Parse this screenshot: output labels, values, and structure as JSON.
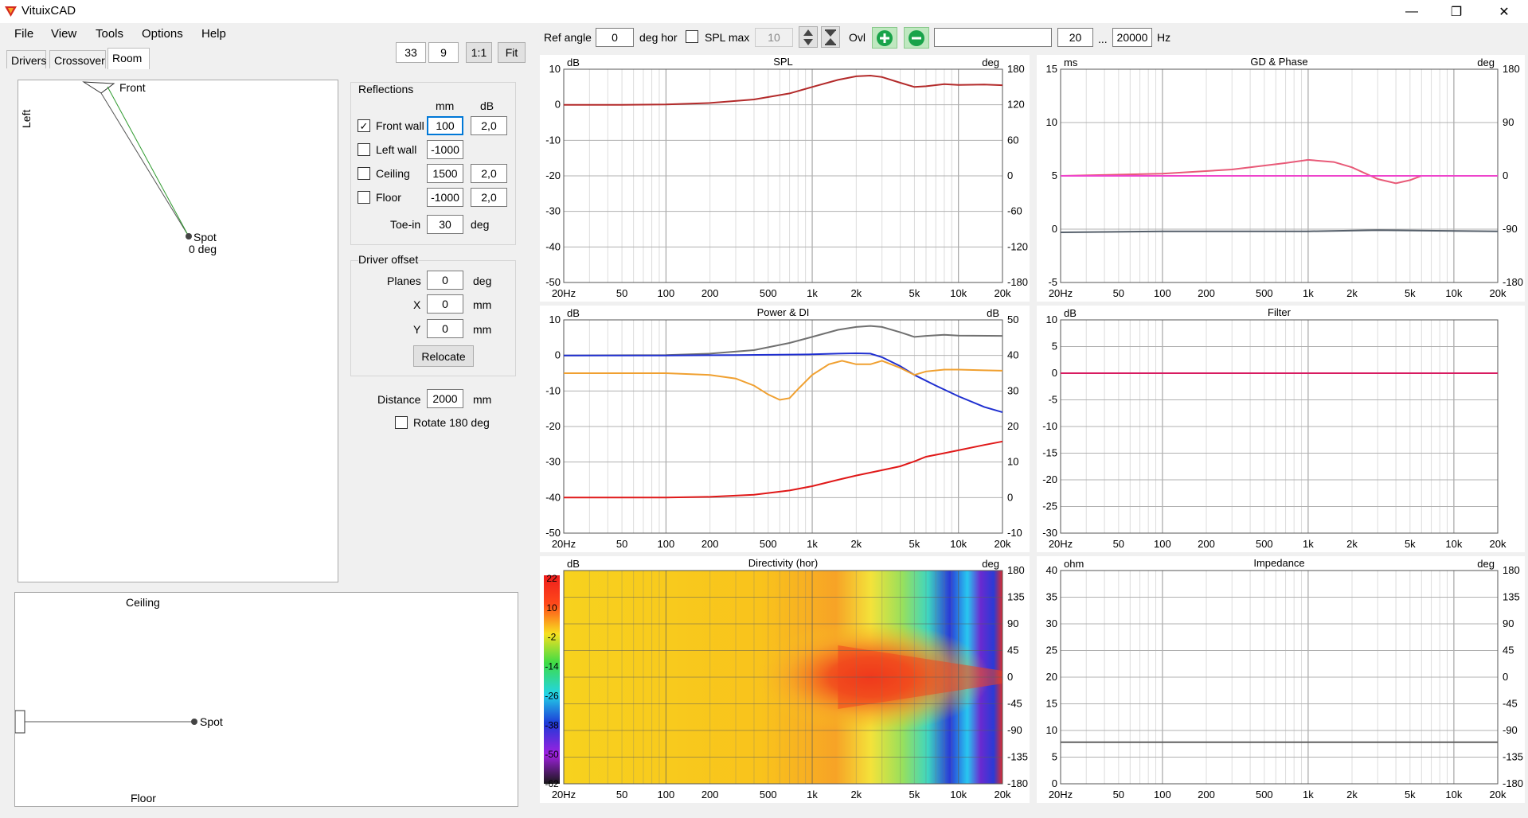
{
  "window": {
    "title": "VituixCAD",
    "minimize_glyph": "—",
    "maximize_glyph": "❐",
    "close_glyph": "✕",
    "app_icon": "speaker-logo-icon"
  },
  "menu": [
    "File",
    "View",
    "Tools",
    "Options",
    "Help"
  ],
  "tabs": [
    "Drivers",
    "Crossover",
    "Room"
  ],
  "view_controls": {
    "zoom_a": "33",
    "zoom_b": "9",
    "one_to_one": "1:1",
    "fit": "Fit"
  },
  "top_plan": {
    "front": "Front",
    "left": "Left",
    "spot": "Spot",
    "spot_angle": "0 deg"
  },
  "side_view": {
    "ceiling": "Ceiling",
    "floor": "Floor",
    "spot": "Spot"
  },
  "reflections": {
    "title": "Reflections",
    "col_mm": "mm",
    "col_db": "dB",
    "rows": [
      {
        "label": "Front wall",
        "checked": true,
        "mm": "100",
        "db": "2,0"
      },
      {
        "label": "Left wall",
        "checked": false,
        "mm": "-1000",
        "db": ""
      },
      {
        "label": "Ceiling",
        "checked": false,
        "mm": "1500",
        "db": "2,0"
      },
      {
        "label": "Floor",
        "checked": false,
        "mm": "-1000",
        "db": "2,0"
      }
    ],
    "toe_in_label": "Toe-in",
    "toe_in": "30",
    "toe_in_unit": "deg"
  },
  "driver_offset": {
    "title": "Driver offset",
    "planes_label": "Planes",
    "planes": "0",
    "planes_unit": "deg",
    "x_label": "X",
    "x": "0",
    "x_unit": "mm",
    "y_label": "Y",
    "y": "0",
    "y_unit": "mm",
    "relocate": "Relocate"
  },
  "distance": {
    "label": "Distance",
    "value": "2000",
    "unit": "mm",
    "rotate_label": "Rotate 180 deg",
    "rotate_checked": false
  },
  "toolbar": {
    "ref_angle_label": "Ref angle",
    "ref_angle": "0",
    "ref_angle_unit": "deg hor",
    "splmax_label": "SPL max",
    "splmax_value": "10",
    "ovl_label": "Ovl",
    "freq_min": "20",
    "freq_sep": "...",
    "freq_max": "20000",
    "freq_unit": "Hz",
    "name_value": ""
  },
  "freq_ticks": [
    "20Hz",
    "50",
    "100",
    "200",
    "500",
    "1k",
    "2k",
    "5k",
    "10k",
    "20k"
  ],
  "colors": {
    "spl": "#b32a2a",
    "power": "#707070",
    "onaxis_blue": "#1f2fd0",
    "di_orange": "#f0a030",
    "red": "#e01818",
    "gd": "#e85a78",
    "phase": "#ee44cc",
    "grey_curve": "#555f6a"
  },
  "charts": {
    "spl": {
      "title": "SPL",
      "left_unit": "dB",
      "right_unit": "deg",
      "left_ticks": [
        "10",
        "0",
        "-10",
        "-20",
        "-30",
        "-40",
        "-50"
      ],
      "right_ticks": [
        "180",
        "120",
        "60",
        "0",
        "-60",
        "-120",
        "-180"
      ],
      "ylim": [
        -50,
        10
      ]
    },
    "gd": {
      "title": "GD & Phase",
      "left_unit": "ms",
      "right_unit": "deg",
      "left_ticks": [
        "15",
        "10",
        "5",
        "0",
        "-5"
      ],
      "right_ticks": [
        "180",
        "90",
        "0",
        "-90",
        "-180"
      ],
      "ylim": [
        -5,
        15
      ]
    },
    "power": {
      "title": "Power & DI",
      "left_unit": "dB",
      "right_unit": "dB",
      "left_ticks": [
        "10",
        "0",
        "-10",
        "-20",
        "-30",
        "-40",
        "-50"
      ],
      "right_ticks": [
        "50",
        "40",
        "30",
        "20",
        "10",
        "0",
        "-10"
      ],
      "ylim": [
        -50,
        10
      ]
    },
    "filter": {
      "title": "Filter",
      "left_unit": "dB",
      "right_unit": "",
      "left_ticks": [
        "10",
        "5",
        "0",
        "-5",
        "-10",
        "-15",
        "-20",
        "-25",
        "-30"
      ],
      "right_ticks": [],
      "ylim": [
        -30,
        10
      ]
    },
    "directivity": {
      "title": "Directivity (hor)",
      "left_unit": "dB",
      "right_unit": "deg",
      "scale_ticks": [
        "22",
        "10",
        "-2",
        "-14",
        "-26",
        "-38",
        "-50",
        "-62"
      ],
      "right_ticks": [
        "180",
        "135",
        "90",
        "45",
        "0",
        "-45",
        "-90",
        "-135",
        "-180"
      ]
    },
    "impedance": {
      "title": "Impedance",
      "left_unit": "ohm",
      "right_unit": "deg",
      "left_ticks": [
        "40",
        "35",
        "30",
        "25",
        "20",
        "15",
        "10",
        "5",
        "0"
      ],
      "right_ticks": [
        "180",
        "135",
        "90",
        "45",
        "0",
        "-45",
        "-90",
        "-135",
        "-180"
      ],
      "ylim": [
        0,
        40
      ]
    }
  },
  "chart_data": [
    {
      "type": "line",
      "title": "SPL",
      "ylabel": "dB",
      "xlim": [
        20,
        20000
      ],
      "ylim": [
        -50,
        10
      ],
      "xscale": "log",
      "series": [
        {
          "color": "#b32a2a",
          "x": [
            20,
            50,
            100,
            200,
            400,
            700,
            1000,
            1500,
            2000,
            2500,
            3000,
            4000,
            5000,
            6000,
            8000,
            10000,
            15000,
            20000
          ],
          "y": [
            0,
            0,
            0.1,
            0.5,
            1.5,
            3.2,
            5,
            7,
            8,
            8.2,
            7.8,
            6.2,
            5,
            5.2,
            5.8,
            5.6,
            5.7,
            5.5
          ]
        }
      ]
    },
    {
      "type": "line",
      "title": "GD & Phase",
      "ylabel": "ms",
      "xlim": [
        20,
        20000
      ],
      "ylim": [
        -5,
        15
      ],
      "xscale": "log",
      "series": [
        {
          "color": "#e85a78",
          "x": [
            20,
            100,
            300,
            700,
            1000,
            1500,
            2000,
            3000,
            4000,
            5000,
            6000,
            10000,
            20000
          ],
          "y": [
            5,
            5.2,
            5.6,
            6.2,
            6.5,
            6.3,
            5.8,
            4.7,
            4.3,
            4.6,
            5,
            5,
            5
          ]
        },
        {
          "color": "#ee44cc",
          "x": [
            20,
            20000
          ],
          "y": [
            5,
            5
          ]
        },
        {
          "color": "#555f6a",
          "x": [
            20,
            100,
            1000,
            3000,
            20000
          ],
          "y": [
            -0.3,
            -0.2,
            -0.2,
            -0.1,
            -0.2
          ]
        }
      ]
    },
    {
      "type": "line",
      "title": "Power & DI",
      "ylabel": "dB",
      "xlim": [
        20,
        20000
      ],
      "ylim": [
        -50,
        10
      ],
      "xscale": "log",
      "series": [
        {
          "color": "#707070",
          "x": [
            20,
            100,
            200,
            400,
            700,
            1000,
            1500,
            2000,
            2500,
            3000,
            4000,
            5000,
            6000,
            8000,
            10000,
            20000
          ],
          "y": [
            0,
            0.1,
            0.5,
            1.5,
            3.5,
            5.2,
            7.2,
            8,
            8.3,
            8,
            6.5,
            5.2,
            5.5,
            5.8,
            5.6,
            5.5
          ]
        },
        {
          "color": "#1f2fd0",
          "x": [
            20,
            100,
            300,
            600,
            1000,
            1500,
            2000,
            2500,
            3000,
            4000,
            5000,
            7000,
            10000,
            15000,
            20000
          ],
          "y": [
            0,
            0,
            0.1,
            0.2,
            0.3,
            0.5,
            0.6,
            0.5,
            -0.5,
            -3,
            -5.5,
            -8.5,
            -11.5,
            -14.5,
            -16
          ]
        },
        {
          "color": "#f0a030",
          "x": [
            20,
            100,
            200,
            300,
            400,
            500,
            600,
            700,
            800,
            1000,
            1300,
            1600,
            2000,
            2500,
            3000,
            4000,
            5000,
            6000,
            8000,
            10000,
            15000,
            20000
          ],
          "y": [
            -5,
            -5,
            -5.5,
            -6.5,
            -8.5,
            -11,
            -12.5,
            -12,
            -9.5,
            -5.5,
            -2.5,
            -1.5,
            -2.5,
            -2.5,
            -1.5,
            -3.5,
            -5.5,
            -4.5,
            -4,
            -4,
            -4.2,
            -4.3
          ]
        },
        {
          "color": "#e01818",
          "x": [
            20,
            100,
            200,
            400,
            700,
            1000,
            1500,
            2000,
            3000,
            4000,
            5000,
            6000,
            8000,
            10000,
            15000,
            20000
          ],
          "y": [
            -40,
            -40,
            -39.8,
            -39.2,
            -38,
            -36.8,
            -35,
            -33.8,
            -32.3,
            -31.2,
            -29.8,
            -28.5,
            -27.5,
            -26.7,
            -25.2,
            -24.2
          ]
        }
      ]
    },
    {
      "type": "line",
      "title": "Filter",
      "ylabel": "dB",
      "xlim": [
        20,
        20000
      ],
      "ylim": [
        -30,
        10
      ],
      "xscale": "log",
      "series": [
        {
          "color": "#d81b60",
          "x": [
            20,
            20000
          ],
          "y": [
            0,
            0
          ]
        }
      ]
    },
    {
      "type": "heatmap",
      "title": "Directivity (hor)",
      "ylabel": "deg",
      "xlim": [
        20,
        20000
      ],
      "ylim": [
        -180,
        180
      ],
      "xscale": "log",
      "color_scale": [
        22,
        -62
      ]
    },
    {
      "type": "line",
      "title": "Impedance",
      "ylabel": "ohm",
      "xlim": [
        20,
        20000
      ],
      "ylim": [
        0,
        40
      ],
      "xscale": "log",
      "series": [
        {
          "color": "#606060",
          "x": [
            20,
            20000
          ],
          "y": [
            7.8,
            7.8
          ]
        }
      ]
    }
  ]
}
